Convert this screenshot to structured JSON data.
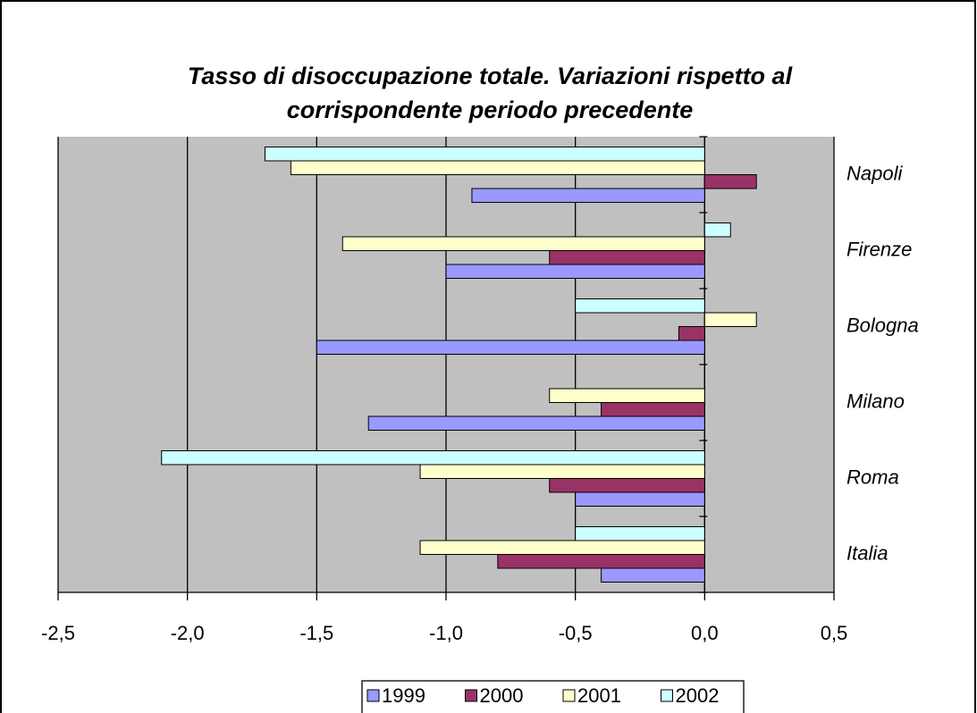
{
  "chart_data": {
    "type": "hbar",
    "title": [
      "Tasso di disoccupazione totale. Variazioni rispetto al",
      "corrispondente periodo precedente"
    ],
    "categories": [
      "Italia",
      "Roma",
      "Milano",
      "Bologna",
      "Firenze",
      "Napoli"
    ],
    "series": [
      {
        "name": "1999",
        "color": "#9999ff",
        "values": [
          -0.4,
          -0.5,
          -1.3,
          -1.5,
          -1.0,
          -0.9
        ]
      },
      {
        "name": "2000",
        "color": "#993366",
        "values": [
          -0.8,
          -0.6,
          -0.4,
          -0.1,
          -0.6,
          0.2
        ]
      },
      {
        "name": "2001",
        "color": "#ffffcc",
        "values": [
          -1.1,
          -1.1,
          -0.6,
          0.2,
          -1.4,
          -1.6
        ]
      },
      {
        "name": "2002",
        "color": "#ccffff",
        "values": [
          -0.5,
          -2.1,
          0,
          -0.5,
          0.1,
          -1.7
        ]
      }
    ],
    "xlim": [
      -2.5,
      0.5
    ],
    "xticks": [
      {
        "value": -2.5,
        "label": "-2,5"
      },
      {
        "value": -2.0,
        "label": "-2,0"
      },
      {
        "value": -1.5,
        "label": "-1,5"
      },
      {
        "value": -1.0,
        "label": "-1,0"
      },
      {
        "value": -0.5,
        "label": "-0,5"
      },
      {
        "value": 0,
        "label": "0,0"
      },
      {
        "value": 0.5,
        "label": "0,5"
      }
    ],
    "grid": true,
    "legend": "bottom"
  }
}
